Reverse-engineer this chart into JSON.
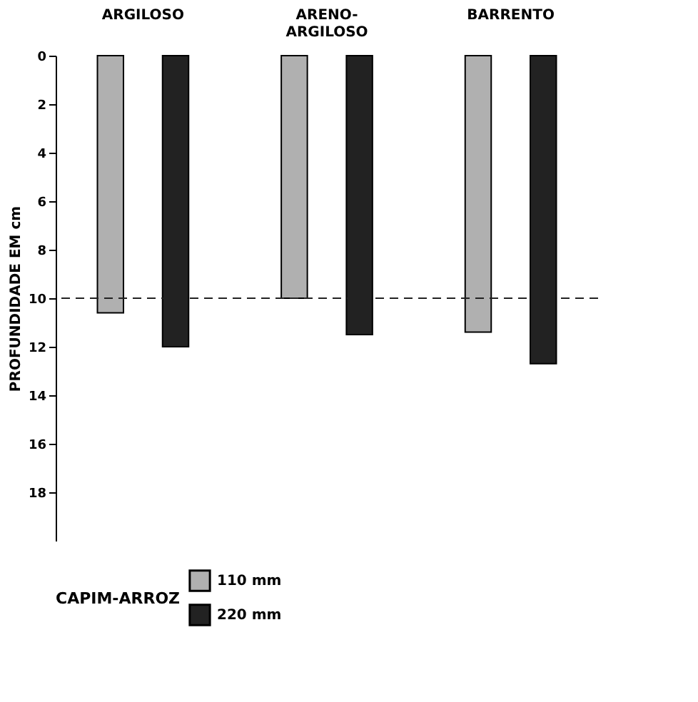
{
  "chart_data": {
    "type": "bar",
    "categories": [
      "ARGILOSO",
      "ARENO-ARGILOSO",
      "BARRENTO"
    ],
    "series": [
      {
        "name": "110 mm",
        "color": "#b0b0b0",
        "values": [
          10.6,
          10.0,
          11.4
        ]
      },
      {
        "name": "220 mm",
        "color": "#222222",
        "values": [
          12.0,
          11.5,
          12.7
        ]
      }
    ],
    "ylabel": "PROFUNDIDADE EM cm",
    "legend_title": "CAPIM-ARROZ",
    "legend": "bottom",
    "ylim": [
      20,
      0
    ],
    "yticks": [
      0,
      2,
      4,
      6,
      8,
      10,
      12,
      14,
      16,
      18
    ],
    "ref_lines": [
      {
        "axis": "y",
        "value": 10,
        "line_style": "dashed",
        "color": "#222222"
      }
    ],
    "grid": false
  }
}
